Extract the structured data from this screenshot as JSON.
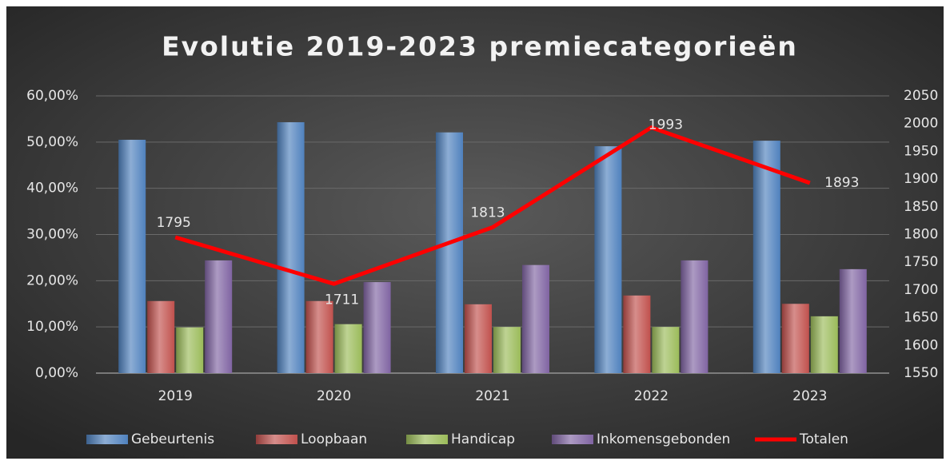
{
  "chart_data": {
    "type": "bar",
    "title": "Evolutie 2019-2023 premiecategorieën",
    "categories": [
      "2019",
      "2020",
      "2021",
      "2022",
      "2023"
    ],
    "series": [
      {
        "name": "Gebeurtenis",
        "color": "#4f81bd",
        "values": [
          50.5,
          54.3,
          52.1,
          49.1,
          50.3
        ]
      },
      {
        "name": "Loopbaan",
        "color": "#c0504d",
        "values": [
          15.6,
          15.6,
          14.9,
          16.8,
          15.0
        ]
      },
      {
        "name": "Handicap",
        "color": "#9bbb59",
        "values": [
          9.9,
          10.6,
          10.0,
          10.0,
          12.3
        ]
      },
      {
        "name": "Inkomensgebonden",
        "color": "#8064a2",
        "values": [
          24.4,
          19.7,
          23.4,
          24.4,
          22.5
        ]
      },
      {
        "name": "Totalen",
        "color": "#ff0000",
        "type": "line",
        "axis": "y2",
        "values": [
          1795,
          1711,
          1813,
          1993,
          1893
        ]
      }
    ],
    "ylim": [
      0,
      60
    ],
    "yticks": [
      {
        "value": 0,
        "label": "0,00%"
      },
      {
        "value": 10,
        "label": "10,00%"
      },
      {
        "value": 20,
        "label": "20,00%"
      },
      {
        "value": 30,
        "label": "30,00%"
      },
      {
        "value": 40,
        "label": "40,00%"
      },
      {
        "value": 50,
        "label": "50,00%"
      },
      {
        "value": 60,
        "label": "60,00%"
      }
    ],
    "y2lim": [
      1550,
      2050
    ],
    "y2ticks": [
      1550,
      1600,
      1650,
      1700,
      1750,
      1800,
      1850,
      1900,
      1950,
      2000,
      2050
    ],
    "grid": true,
    "legend": "bottom"
  }
}
